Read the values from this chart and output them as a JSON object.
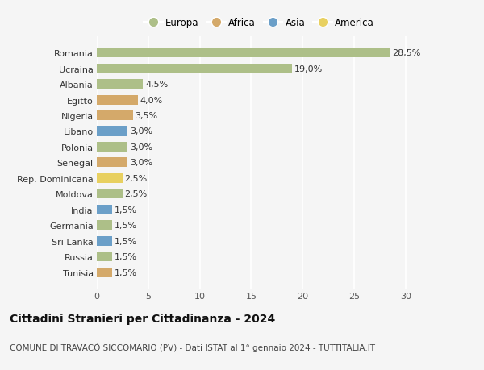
{
  "categories": [
    "Tunisia",
    "Russia",
    "Sri Lanka",
    "Germania",
    "India",
    "Moldova",
    "Rep. Dominicana",
    "Senegal",
    "Polonia",
    "Libano",
    "Nigeria",
    "Egitto",
    "Albania",
    "Ucraina",
    "Romania"
  ],
  "values": [
    1.5,
    1.5,
    1.5,
    1.5,
    1.5,
    2.5,
    2.5,
    3.0,
    3.0,
    3.0,
    3.5,
    4.0,
    4.5,
    19.0,
    28.5
  ],
  "labels": [
    "1,5%",
    "1,5%",
    "1,5%",
    "1,5%",
    "1,5%",
    "2,5%",
    "2,5%",
    "3,0%",
    "3,0%",
    "3,0%",
    "3,5%",
    "4,0%",
    "4,5%",
    "19,0%",
    "28,5%"
  ],
  "colors": [
    "#d4a96a",
    "#adbf88",
    "#6b9fc8",
    "#adbf88",
    "#6b9fc8",
    "#adbf88",
    "#e8d060",
    "#d4a96a",
    "#adbf88",
    "#6b9fc8",
    "#d4a96a",
    "#d4a96a",
    "#adbf88",
    "#adbf88",
    "#adbf88"
  ],
  "legend_labels": [
    "Europa",
    "Africa",
    "Asia",
    "America"
  ],
  "legend_colors": [
    "#adbf88",
    "#d4a96a",
    "#6b9fc8",
    "#e8d060"
  ],
  "title": "Cittadini Stranieri per Cittadinanza - 2024",
  "subtitle": "COMUNE DI TRAVACÒ SICCOMARIO (PV) - Dati ISTAT al 1° gennaio 2024 - TUTTITALIA.IT",
  "xlim": [
    0,
    31.5
  ],
  "xticks": [
    0,
    5,
    10,
    15,
    20,
    25,
    30
  ],
  "bg_color": "#f5f5f5",
  "bar_height": 0.62,
  "grid_color": "#ffffff",
  "title_fontsize": 10,
  "subtitle_fontsize": 7.5,
  "label_fontsize": 8,
  "tick_fontsize": 8
}
